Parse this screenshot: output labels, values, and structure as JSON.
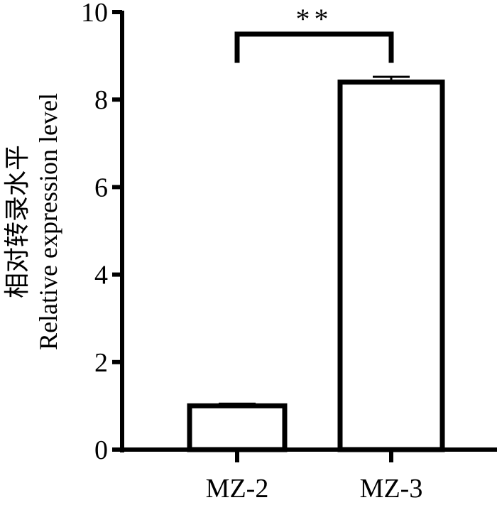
{
  "chart_data": {
    "type": "bar",
    "categories": [
      "MZ-2",
      "MZ-3"
    ],
    "values": [
      1.0,
      8.4
    ],
    "errors": [
      0.05,
      0.12
    ],
    "ylabel_line1": "相对转录水平",
    "ylabel_line2": "Relative expression level",
    "xlabel": "",
    "ylim": [
      0,
      10
    ],
    "yticks": [
      0,
      2,
      4,
      6,
      8,
      10
    ],
    "significance": {
      "label": "**",
      "between": [
        0,
        1
      ]
    },
    "colors": {
      "bar_fill": "#ffffff",
      "bar_stroke": "#000000",
      "error_bar": "#000000"
    }
  }
}
